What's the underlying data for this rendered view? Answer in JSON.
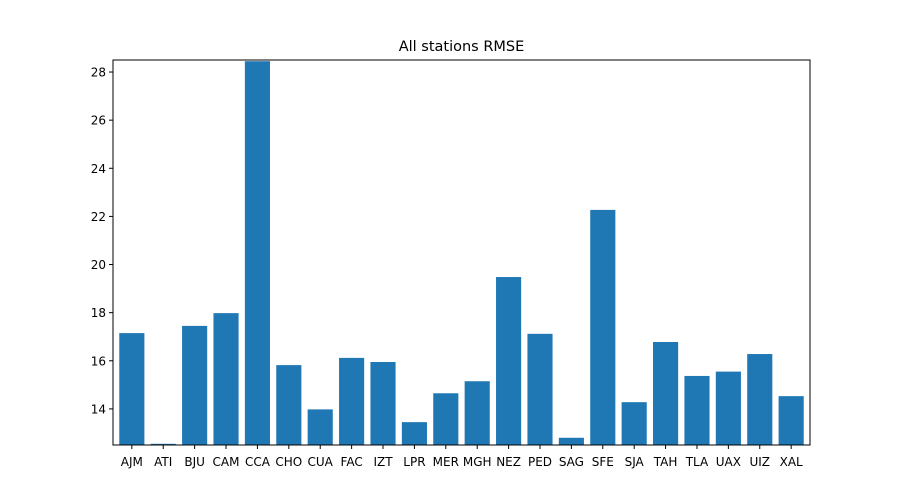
{
  "chart_data": {
    "type": "bar",
    "title": "All stations RMSE",
    "xlabel": "",
    "ylabel": "",
    "categories": [
      "AJM",
      "ATI",
      "BJU",
      "CAM",
      "CCA",
      "CHO",
      "CUA",
      "FAC",
      "IZT",
      "LPR",
      "MER",
      "MGH",
      "NEZ",
      "PED",
      "SAG",
      "SFE",
      "SJA",
      "TAH",
      "TLA",
      "UAX",
      "UIZ",
      "XAL"
    ],
    "values": [
      17.15,
      12.55,
      17.45,
      17.98,
      28.45,
      15.82,
      13.98,
      16.12,
      15.95,
      13.45,
      14.65,
      15.15,
      19.48,
      17.12,
      12.8,
      22.27,
      14.28,
      16.78,
      15.37,
      15.55,
      16.28,
      14.53
    ],
    "ylim": [
      12.5,
      28.5
    ],
    "yticks": [
      14,
      16,
      18,
      20,
      22,
      24,
      26,
      28
    ],
    "bar_color": "#1f77b4",
    "grid": false,
    "legend": "none"
  }
}
